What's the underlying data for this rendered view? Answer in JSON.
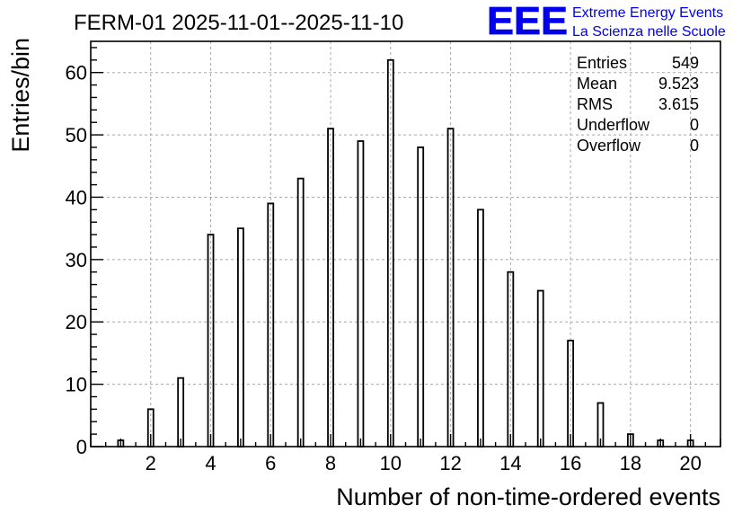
{
  "chart_data": {
    "type": "bar",
    "title": "FERM-01 2025-11-01--2025-11-10",
    "xlabel": "Number of non-time-ordered events",
    "ylabel": "Entries/bin",
    "xlim": [
      0,
      21
    ],
    "ylim": [
      0,
      65
    ],
    "x_ticks": [
      2,
      4,
      6,
      8,
      10,
      12,
      14,
      16,
      18,
      20
    ],
    "y_ticks": [
      0,
      10,
      20,
      30,
      40,
      50,
      60
    ],
    "grid": true,
    "categories": [
      1,
      2,
      3,
      4,
      5,
      6,
      7,
      8,
      9,
      10,
      11,
      12,
      13,
      14,
      15,
      16,
      17,
      18,
      19,
      20
    ],
    "values": [
      1,
      6,
      11,
      34,
      35,
      39,
      43,
      51,
      49,
      62,
      48,
      51,
      38,
      28,
      25,
      17,
      7,
      2,
      1,
      1
    ]
  },
  "stats": {
    "rows": [
      {
        "label": "Entries",
        "value": "549"
      },
      {
        "label": "Mean",
        "value": "9.523"
      },
      {
        "label": "RMS",
        "value": "3.615"
      },
      {
        "label": "Underflow",
        "value": "0"
      },
      {
        "label": "Overflow",
        "value": "0"
      }
    ]
  },
  "logo": {
    "text": "EEE",
    "line1": "Extreme Energy Events",
    "line2": "La Scienza nelle Scuole",
    "color": "#0000ee"
  }
}
